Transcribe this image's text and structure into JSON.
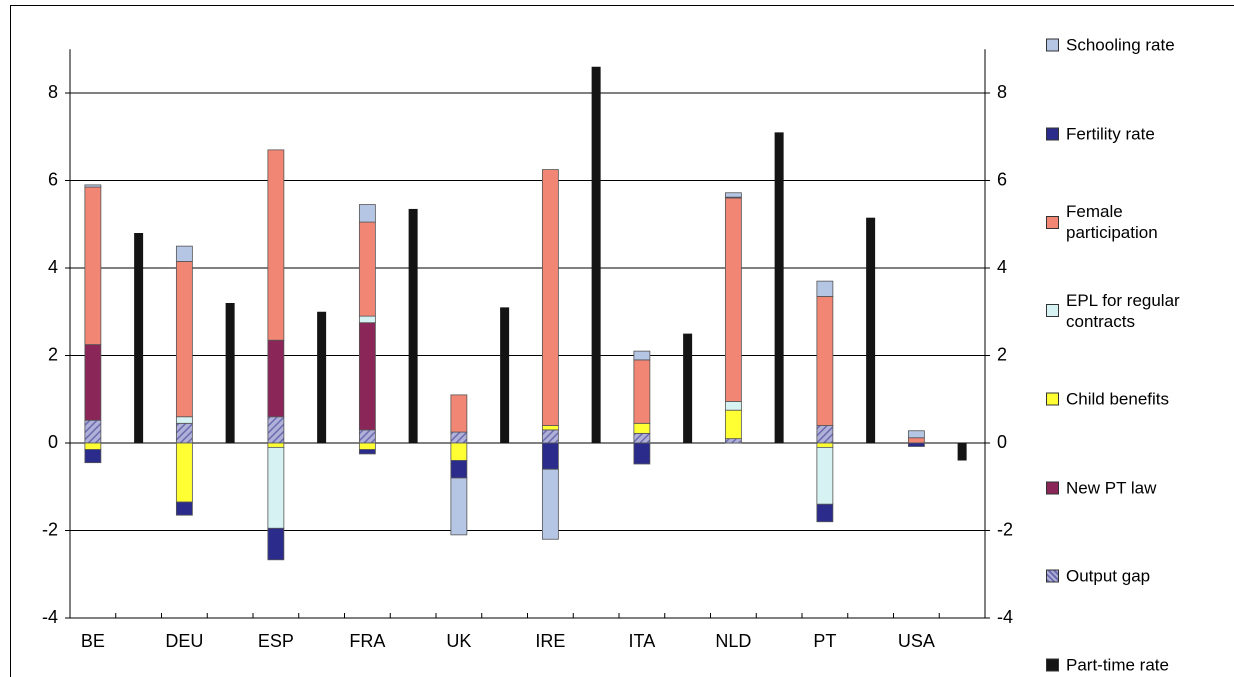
{
  "chart_data": {
    "type": "stacked-bar",
    "categories": [
      "BE",
      null,
      "DEU",
      null,
      "ESP",
      null,
      "FRA",
      null,
      "UK",
      null,
      "IRE",
      null,
      "ITA",
      null,
      "NLD",
      null,
      "PT",
      null,
      "USA",
      null
    ],
    "series": [
      {
        "name": "Schooling rate",
        "color": "#b4c6e4",
        "values": [
          0.05,
          null,
          0.35,
          null,
          null,
          null,
          0.4,
          null,
          -1.3,
          null,
          -1.6,
          null,
          0.2,
          null,
          0.1,
          null,
          0.35,
          null,
          0.16,
          null
        ]
      },
      {
        "name": "Fertility rate",
        "color": "#2b2b8c",
        "values": [
          -0.3,
          null,
          -0.3,
          null,
          -0.72,
          null,
          -0.1,
          null,
          -0.4,
          null,
          -0.6,
          null,
          -0.48,
          null,
          0.02,
          null,
          -0.4,
          null,
          -0.08,
          null
        ]
      },
      {
        "name": "Female participation",
        "color": "#f28674",
        "values": [
          3.6,
          null,
          3.55,
          null,
          4.35,
          null,
          2.15,
          null,
          0.85,
          null,
          5.85,
          null,
          1.45,
          null,
          4.65,
          null,
          2.95,
          null,
          0.12,
          null
        ]
      },
      {
        "name": "EPL for regular contracts",
        "color": "#d6f2f2",
        "values": [
          null,
          null,
          0.15,
          null,
          -1.85,
          null,
          0.15,
          null,
          null,
          null,
          null,
          null,
          null,
          null,
          0.2,
          null,
          -1.3,
          null,
          null,
          null
        ]
      },
      {
        "name": "Child benefits",
        "color": "#ffff33",
        "values": [
          -0.15,
          null,
          -1.35,
          null,
          -0.1,
          null,
          -0.15,
          null,
          -0.4,
          null,
          0.1,
          null,
          0.23,
          null,
          0.65,
          null,
          -0.1,
          null,
          null,
          null
        ]
      },
      {
        "name": "New PT law",
        "color": "#8b2658",
        "values": [
          1.73,
          null,
          null,
          null,
          1.75,
          null,
          2.45,
          null,
          null,
          null,
          null,
          null,
          null,
          null,
          null,
          null,
          null,
          null,
          null,
          null
        ]
      },
      {
        "name": "Output gap",
        "color": "#6b6bb0",
        "hatch": true,
        "values": [
          0.52,
          null,
          0.45,
          null,
          0.6,
          null,
          0.3,
          null,
          0.25,
          null,
          0.3,
          null,
          0.22,
          null,
          0.1,
          null,
          0.4,
          null,
          null,
          null
        ]
      },
      {
        "name": "Part-time rate",
        "color": "#141414",
        "values": [
          null,
          4.8,
          null,
          3.2,
          null,
          3.0,
          null,
          5.35,
          null,
          3.1,
          null,
          8.6,
          null,
          2.5,
          null,
          7.1,
          null,
          5.15,
          null,
          -0.4
        ]
      }
    ],
    "ylim": [
      -4,
      9
    ],
    "yticks": [
      -4,
      -2,
      0,
      2,
      4,
      6,
      8
    ],
    "y2lim": [
      -4,
      9
    ],
    "y2ticks": [
      -4,
      -2,
      0,
      2,
      4,
      6,
      8
    ],
    "grid": true,
    "legend": "right"
  }
}
